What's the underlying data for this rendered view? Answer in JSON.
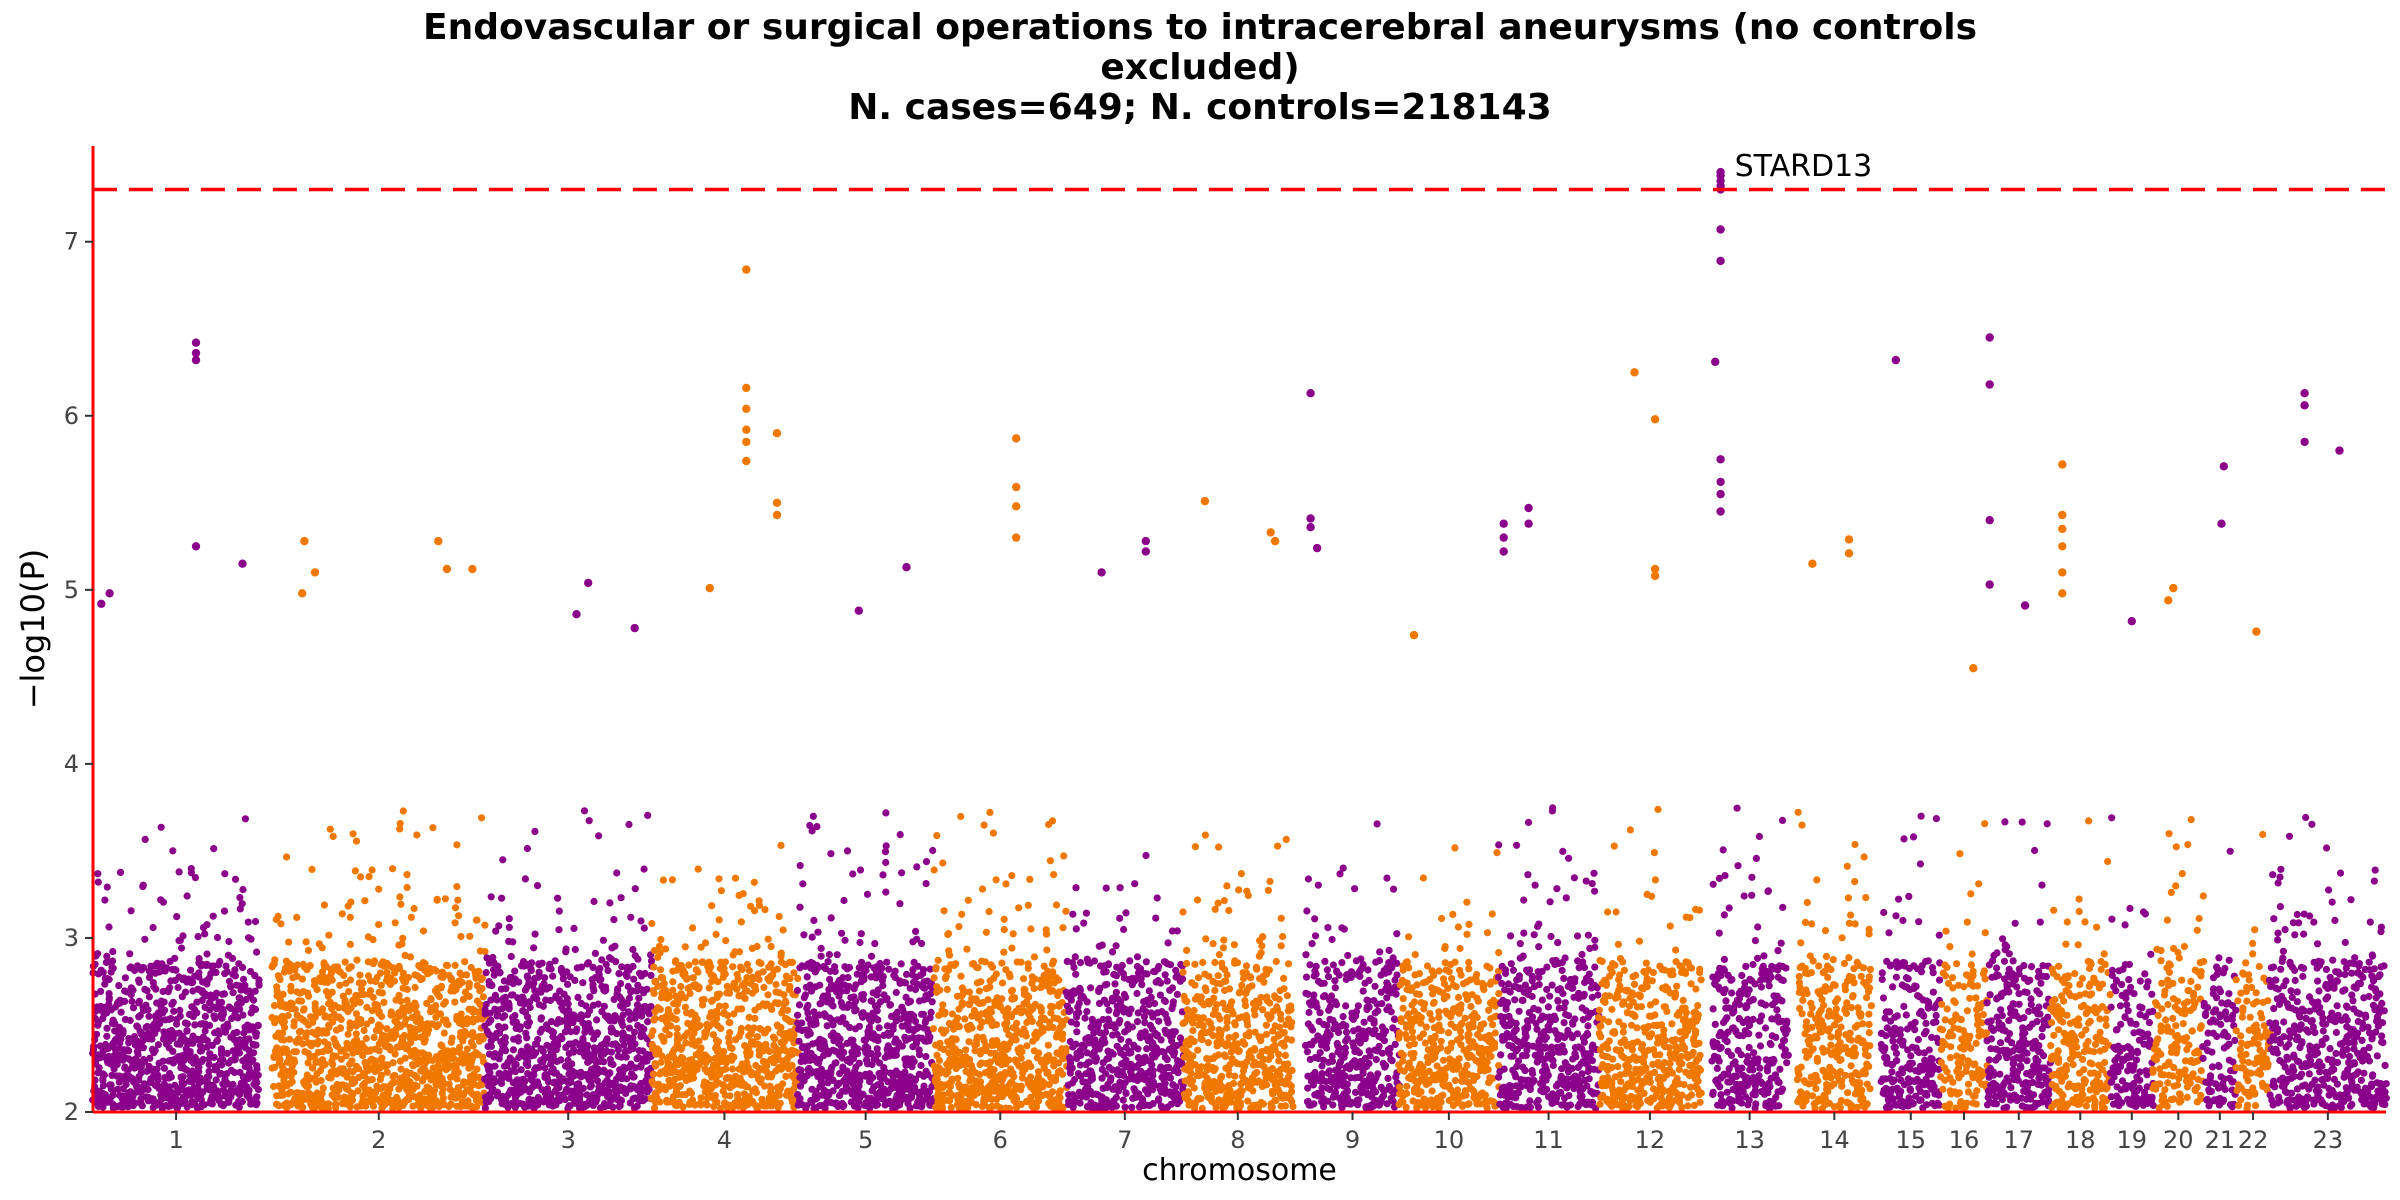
{
  "chart_data": {
    "type": "scatter",
    "title_lines": [
      "Endovascular or surgical operations to intracerebral aneurysms (no controls",
      "excluded)",
      "N. cases=649; N. controls=218143"
    ],
    "xlabel": "chromosome",
    "ylabel": "−log10(P)",
    "ylim": [
      2,
      7.55
    ],
    "y_ticks": [
      2,
      3,
      4,
      5,
      6,
      7
    ],
    "significance_threshold": 7.3,
    "colors": {
      "odd": "#8b008b",
      "even": "#f07800",
      "threshold": "#ff0000",
      "axis": "#ff0000"
    },
    "chromosomes": [
      {
        "label": "1",
        "start": 0,
        "end": 1.0,
        "color": "odd",
        "density": 1.0,
        "top": [
          [
            0.62,
            6.42
          ],
          [
            0.62,
            6.36
          ],
          [
            0.62,
            6.32
          ],
          [
            0.62,
            5.25
          ],
          [
            0.1,
            4.98
          ],
          [
            0.05,
            4.92
          ],
          [
            0.9,
            5.15
          ]
        ]
      },
      {
        "label": "2",
        "start": 1.08,
        "end": 2.36,
        "color": "even",
        "density": 1.0,
        "top": [
          [
            0.15,
            5.28
          ],
          [
            0.2,
            5.1
          ],
          [
            0.78,
            5.28
          ],
          [
            0.82,
            5.12
          ],
          [
            0.94,
            5.12
          ],
          [
            0.14,
            4.98
          ]
        ]
      },
      {
        "label": "3",
        "start": 2.36,
        "end": 3.36,
        "color": "odd",
        "density": 0.9,
        "top": [
          [
            0.62,
            5.04
          ],
          [
            0.9,
            4.78
          ],
          [
            0.55,
            4.86
          ]
        ]
      },
      {
        "label": "4",
        "start": 3.36,
        "end": 4.24,
        "color": "even",
        "density": 0.9,
        "top": [
          [
            0.65,
            6.84
          ],
          [
            0.65,
            6.16
          ],
          [
            0.65,
            6.04
          ],
          [
            0.65,
            5.92
          ],
          [
            0.65,
            5.85
          ],
          [
            0.65,
            5.74
          ],
          [
            0.86,
            5.9
          ],
          [
            0.86,
            5.5
          ],
          [
            0.86,
            5.43
          ],
          [
            0.4,
            5.01
          ]
        ]
      },
      {
        "label": "5",
        "start": 4.24,
        "end": 5.06,
        "color": "odd",
        "density": 0.9,
        "top": [
          [
            0.8,
            5.13
          ],
          [
            0.45,
            4.88
          ]
        ]
      },
      {
        "label": "6",
        "start": 5.06,
        "end": 5.86,
        "color": "even",
        "density": 0.9,
        "top": [
          [
            0.62,
            5.87
          ],
          [
            0.62,
            5.59
          ],
          [
            0.62,
            5.48
          ],
          [
            0.62,
            5.3
          ]
        ]
      },
      {
        "label": "7",
        "start": 5.86,
        "end": 6.56,
        "color": "odd",
        "density": 0.85,
        "top": [
          [
            0.68,
            5.28
          ],
          [
            0.68,
            5.22
          ],
          [
            0.3,
            5.1
          ]
        ]
      },
      {
        "label": "8",
        "start": 6.56,
        "end": 7.22,
        "color": "even",
        "density": 0.85,
        "top": [
          [
            0.2,
            5.51
          ],
          [
            0.8,
            5.33
          ],
          [
            0.84,
            5.28
          ]
        ]
      },
      {
        "label": "9",
        "start": 7.3,
        "end": 7.86,
        "color": "odd",
        "density": 0.8,
        "top": [
          [
            0.05,
            6.13
          ],
          [
            0.05,
            5.41
          ],
          [
            0.05,
            5.36
          ],
          [
            0.12,
            5.24
          ]
        ]
      },
      {
        "label": "10",
        "start": 7.86,
        "end": 8.46,
        "color": "even",
        "density": 0.8,
        "top": [
          [
            0.15,
            4.74
          ]
        ]
      },
      {
        "label": "11",
        "start": 8.46,
        "end": 9.06,
        "color": "odd",
        "density": 0.8,
        "top": [
          [
            0.05,
            5.38
          ],
          [
            0.05,
            5.3
          ],
          [
            0.05,
            5.22
          ],
          [
            0.3,
            5.47
          ],
          [
            0.3,
            5.38
          ]
        ]
      },
      {
        "label": "12",
        "start": 9.06,
        "end": 9.68,
        "color": "even",
        "density": 0.8,
        "top": [
          [
            0.35,
            6.25
          ],
          [
            0.55,
            5.98
          ],
          [
            0.55,
            5.12
          ],
          [
            0.55,
            5.08
          ]
        ]
      },
      {
        "label": "13",
        "start": 9.74,
        "end": 10.2,
        "color": "odd",
        "density": 0.75,
        "top": [
          [
            0.05,
            6.31
          ],
          [
            0.12,
            7.4
          ],
          [
            0.12,
            7.38
          ],
          [
            0.12,
            7.35
          ],
          [
            0.12,
            7.32
          ],
          [
            0.12,
            7.3
          ],
          [
            0.12,
            7.07
          ],
          [
            0.12,
            6.89
          ],
          [
            0.12,
            5.75
          ],
          [
            0.12,
            5.62
          ],
          [
            0.12,
            5.55
          ],
          [
            0.12,
            5.45
          ]
        ]
      },
      {
        "label": "14",
        "start": 10.26,
        "end": 10.7,
        "color": "even",
        "density": 0.7,
        "top": [
          [
            0.7,
            5.29
          ],
          [
            0.7,
            5.21
          ],
          [
            0.2,
            5.15
          ]
        ]
      },
      {
        "label": "15",
        "start": 10.76,
        "end": 11.12,
        "color": "odd",
        "density": 0.7,
        "top": [
          [
            0.25,
            6.32
          ]
        ]
      },
      {
        "label": "16",
        "start": 11.12,
        "end": 11.4,
        "color": "even",
        "density": 0.65,
        "top": [
          [
            0.7,
            4.55
          ]
        ]
      },
      {
        "label": "17",
        "start": 11.4,
        "end": 11.78,
        "color": "odd",
        "density": 0.7,
        "top": [
          [
            0.04,
            6.45
          ],
          [
            0.04,
            6.18
          ],
          [
            0.04,
            5.4
          ],
          [
            0.04,
            5.03
          ],
          [
            0.6,
            4.91
          ]
        ]
      },
      {
        "label": "18",
        "start": 11.78,
        "end": 12.14,
        "color": "even",
        "density": 0.7,
        "top": [
          [
            0.2,
            5.72
          ],
          [
            0.2,
            5.43
          ],
          [
            0.2,
            5.35
          ],
          [
            0.2,
            5.25
          ],
          [
            0.2,
            5.1
          ],
          [
            0.2,
            4.98
          ]
        ]
      },
      {
        "label": "19",
        "start": 12.14,
        "end": 12.4,
        "color": "odd",
        "density": 0.6,
        "top": [
          [
            0.5,
            4.82
          ]
        ]
      },
      {
        "label": "20",
        "start": 12.4,
        "end": 12.7,
        "color": "even",
        "density": 0.6,
        "top": [
          [
            0.4,
            5.01
          ],
          [
            0.3,
            4.94
          ]
        ]
      },
      {
        "label": "21",
        "start": 12.7,
        "end": 12.9,
        "color": "odd",
        "density": 0.5,
        "top": [
          [
            0.62,
            5.71
          ],
          [
            0.55,
            5.38
          ]
        ]
      },
      {
        "label": "22",
        "start": 12.9,
        "end": 13.1,
        "color": "even",
        "density": 0.5,
        "top": [
          [
            0.6,
            4.76
          ]
        ]
      },
      {
        "label": "23",
        "start": 13.1,
        "end": 13.8,
        "color": "odd",
        "density": 0.75,
        "top": [
          [
            0.3,
            6.13
          ],
          [
            0.3,
            6.06
          ],
          [
            0.3,
            5.85
          ],
          [
            0.6,
            5.8
          ]
        ]
      }
    ],
    "annotations": [
      {
        "text": "STARD13",
        "chromosome": "13",
        "pos": 0.12,
        "y": 7.4
      }
    ]
  }
}
